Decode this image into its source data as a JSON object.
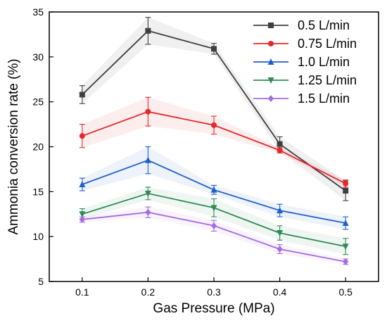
{
  "chart_data": {
    "type": "line",
    "xlabel": "Gas Pressure (MPa)",
    "ylabel": "Ammonia conversion rate (%)",
    "x": [
      0.1,
      0.2,
      0.3,
      0.4,
      0.5
    ],
    "x_tick_labels": [
      "0.1",
      "0.2",
      "0.3",
      "0.4",
      "0.5"
    ],
    "xlim": [
      0.05,
      0.55
    ],
    "ylim": [
      5,
      35
    ],
    "y_ticks": [
      5,
      10,
      15,
      20,
      25,
      30,
      35
    ],
    "y_tick_labels": [
      "5",
      "10",
      "15",
      "20",
      "25",
      "30",
      "35"
    ],
    "grid": false,
    "legend_position": "top-right",
    "series": [
      {
        "name": "0.5 L/min",
        "color": "#3f3f3f",
        "marker": "square",
        "values": [
          25.8,
          32.9,
          30.9,
          20.3,
          15.1
        ],
        "errors": [
          1.0,
          1.5,
          0.6,
          0.8,
          1.1
        ]
      },
      {
        "name": "0.75 L/min",
        "color": "#e8262b",
        "marker": "circle",
        "values": [
          21.2,
          23.9,
          22.4,
          19.6,
          15.9
        ],
        "errors": [
          1.3,
          1.6,
          1.0,
          0.3,
          0.4
        ]
      },
      {
        "name": "1.0 L/min",
        "color": "#1f5fcc",
        "marker": "triangle-up",
        "values": [
          15.8,
          18.5,
          15.2,
          12.9,
          11.5
        ],
        "errors": [
          0.7,
          1.5,
          0.5,
          0.7,
          0.7
        ]
      },
      {
        "name": "1.25 L/min",
        "color": "#2e8b57",
        "marker": "triangle-down",
        "values": [
          12.5,
          14.8,
          13.2,
          10.4,
          8.9
        ],
        "errors": [
          0.6,
          0.7,
          1.0,
          0.8,
          0.9
        ]
      },
      {
        "name": "1.5 L/min",
        "color": "#a46be0",
        "marker": "diamond",
        "values": [
          11.9,
          12.7,
          11.2,
          8.6,
          7.2
        ],
        "errors": [
          0.3,
          0.6,
          0.6,
          0.5,
          0.3
        ]
      }
    ]
  }
}
